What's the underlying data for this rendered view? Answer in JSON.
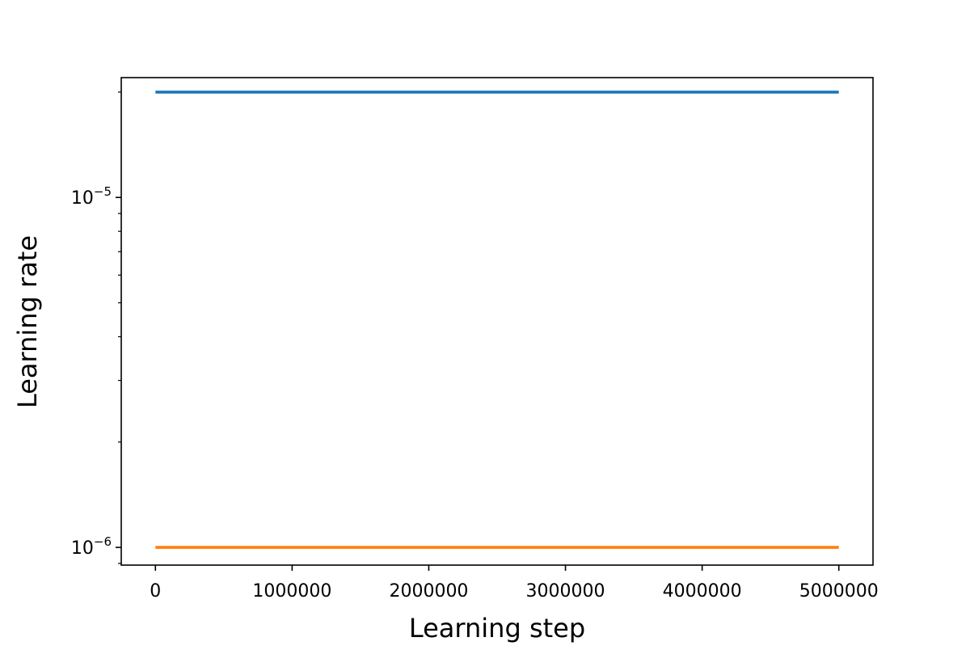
{
  "chart_data": {
    "type": "line",
    "title": "",
    "xlabel": "Learning step",
    "ylabel": "Learning rate",
    "xlim": [
      -250000,
      5250000
    ],
    "ylim": [
      8.9e-07,
      2.2e-05
    ],
    "yscale": "log",
    "grid": false,
    "x_ticks": [
      0,
      1000000,
      2000000,
      3000000,
      4000000,
      5000000
    ],
    "x_tick_labels": [
      "0",
      "1000000",
      "2000000",
      "3000000",
      "4000000",
      "5000000"
    ],
    "y_ticks": [
      {
        "value": 1e-06,
        "base": "10",
        "exponent": "−6"
      },
      {
        "value": 1e-05,
        "base": "10",
        "exponent": "−5"
      }
    ],
    "series": [
      {
        "x": [
          0,
          5000000
        ],
        "y": [
          2e-05,
          2e-05
        ],
        "color": "#1f77b4"
      },
      {
        "x": [
          0,
          5000000
        ],
        "y": [
          1e-06,
          1e-06
        ],
        "color": "#ff7f0e"
      }
    ]
  }
}
